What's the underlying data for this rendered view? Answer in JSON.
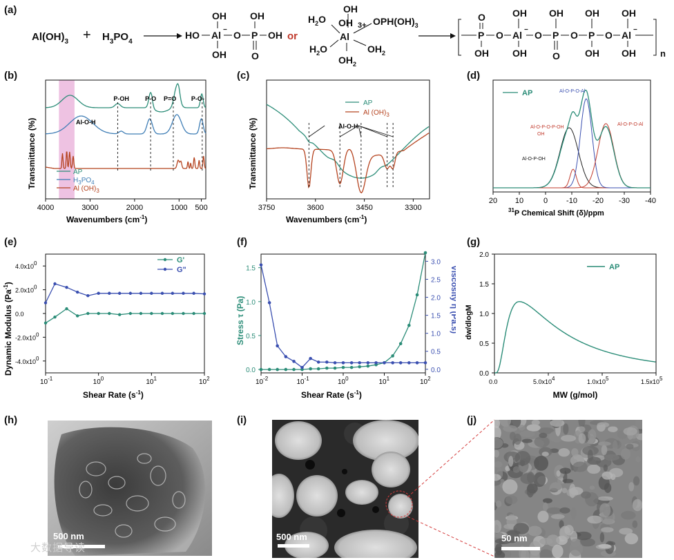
{
  "panel_labels": {
    "a": "(a)",
    "b": "(b)",
    "c": "(c)",
    "d": "(d)",
    "e": "(e)",
    "f": "(f)",
    "g": "(g)",
    "h": "(h)",
    "i": "(i)",
    "j": "(j)"
  },
  "reaction": {
    "reactant1_main": "Al(OH)",
    "reactant1_sub": "3",
    "plus": "+",
    "reactant2_main": "H",
    "reactant2_sub1": "3",
    "reactant2_main2": "PO",
    "reactant2_sub2": "4",
    "or": "or",
    "n": "n",
    "ho": "HO",
    "oh": "OH",
    "o": "O",
    "p": "P",
    "al": "Al",
    "h2o": "H",
    "sub2": "2",
    "oph": "OPH(OH)",
    "sub3": "3",
    "charge": "3+",
    "minus": "−"
  },
  "chart_data": [
    {
      "id": "b",
      "type": "line",
      "xlabel": "Wavenumbers (cm",
      "xlabel_sup": "-1",
      "xlabel_end": ")",
      "ylabel": "Transmittance (%)",
      "xlim": [
        4000,
        400
      ],
      "xticks": [
        "4000",
        "3000",
        "2000",
        "1000",
        "500"
      ],
      "annotations": [
        "P-OH",
        "P-O",
        "P=O",
        "P-O-",
        "Al-O-H"
      ],
      "series": [
        {
          "name": "AP",
          "color": "#2a8c77"
        },
        {
          "name": "H3PO4",
          "label_main": "H",
          "label_sub1": "3",
          "label_main2": "PO",
          "label_sub2": "4",
          "color": "#3e7db5"
        },
        {
          "name": "Al (OH)3",
          "label_main": "Al (OH)",
          "label_sub": "3",
          "color": "#b5431f"
        }
      ]
    },
    {
      "id": "c",
      "type": "line",
      "xlabel": "Wavenumbers (cm",
      "xlabel_sup": "-1",
      "xlabel_end": ")",
      "ylabel": "Transmittance (%)",
      "xlim": [
        3750,
        3250
      ],
      "xticks": [
        "3750",
        "3600",
        "3450",
        "3300"
      ],
      "annotations": [
        "Al-O-H"
      ],
      "series": [
        {
          "name": "AP",
          "color": "#2a8c77"
        },
        {
          "name": "Al (OH)3",
          "label_main": "Al (OH)",
          "label_sub": "3",
          "color": "#b5431f"
        }
      ]
    },
    {
      "id": "d",
      "type": "line",
      "xlabel_sup": "31",
      "xlabel": "P Chemical Shift (δ)/ppm",
      "xlim": [
        20,
        -40
      ],
      "xticks": [
        "20",
        "10",
        "0",
        "-10",
        "-20",
        "-30",
        "-40"
      ],
      "legend": "AP",
      "peaks": [
        {
          "center": -9,
          "height": 0.58,
          "color": "#222222"
        },
        {
          "center": -10.5,
          "height": 0.18,
          "color": "#c0392b"
        },
        {
          "center": -15.5,
          "height": 0.86,
          "color": "#3a4fb0"
        },
        {
          "center": -23,
          "height": 0.62,
          "color": "#c0392b"
        }
      ],
      "structure_labels": [
        "Al",
        "O",
        "P",
        "OH",
        "O",
        "P",
        "OH",
        "Al",
        "O",
        "P",
        "OH",
        "Al",
        "O",
        "P",
        "Al",
        "O",
        "P",
        "Al"
      ]
    },
    {
      "id": "e",
      "type": "line",
      "xlabel": "Shear Rate (s",
      "xlabel_sup": "-1",
      "xlabel_end": ")",
      "ylabel": "Dynamic Modulus (Pa",
      "ylabel_sup": "-1",
      "ylabel_end": ")",
      "xlim": [
        0.1,
        100
      ],
      "ylim": [
        -5,
        5
      ],
      "xticks": [
        "10",
        "10",
        "10",
        "10"
      ],
      "xtick_exps": [
        "-1",
        "0",
        "1",
        "2"
      ],
      "yticks": [
        "4.0x10",
        "2.0x10",
        "0.0",
        "-2.0x10",
        "-4.0x10"
      ],
      "ytick_exps": [
        "0",
        "0",
        "",
        "0",
        "0"
      ],
      "series": [
        {
          "name": "G'",
          "color": "#2a8c77",
          "x": [
            0.1,
            0.15,
            0.25,
            0.4,
            0.63,
            1,
            1.6,
            2.5,
            4,
            6.3,
            10,
            16,
            25,
            40,
            63,
            100
          ],
          "y": [
            -0.8,
            -0.3,
            0.4,
            -0.2,
            0.0,
            0.0,
            0.0,
            -0.1,
            0.0,
            0.0,
            0.0,
            0.0,
            0.0,
            0.0,
            0.0,
            0.0
          ]
        },
        {
          "name": "G\"",
          "color": "#3a4fb0",
          "x": [
            0.1,
            0.15,
            0.25,
            0.4,
            0.63,
            1,
            1.6,
            2.5,
            4,
            6.3,
            10,
            16,
            25,
            40,
            63,
            100
          ],
          "y": [
            0.9,
            2.5,
            2.2,
            1.8,
            1.5,
            1.7,
            1.7,
            1.7,
            1.7,
            1.7,
            1.7,
            1.7,
            1.7,
            1.7,
            1.7,
            1.65
          ]
        }
      ]
    },
    {
      "id": "f",
      "type": "line",
      "xlabel": "Shear Rate (s",
      "xlabel_sup": "-1",
      "xlabel_end": ")",
      "ylabel_left": "Stress τ (Pa)",
      "ylabel_right": "Viscosity η (Pa.s)",
      "xlim": [
        0.01,
        100
      ],
      "ylim_left": [
        -0.05,
        1.7
      ],
      "ylim_right": [
        -0.1,
        3.2
      ],
      "xticks": [
        "10",
        "10",
        "10",
        "10",
        "10"
      ],
      "xtick_exps": [
        "-2",
        "-1",
        "0",
        "1",
        "2"
      ],
      "yticks_left": [
        "0.0",
        "0.5",
        "1.0",
        "1.5"
      ],
      "yticks_right": [
        "0.0",
        "0.5",
        "1.0",
        "1.5",
        "2.0",
        "2.5",
        "3.0"
      ],
      "series": [
        {
          "name": "Stress",
          "color": "#2a8c77",
          "axis": "left",
          "x": [
            0.01,
            0.016,
            0.025,
            0.04,
            0.063,
            0.1,
            0.16,
            0.25,
            0.4,
            0.63,
            1,
            1.6,
            2.5,
            4,
            6.3,
            10,
            16,
            25,
            40,
            63,
            100
          ],
          "y": [
            0,
            0,
            0,
            0,
            0,
            0,
            0.01,
            0.01,
            0.02,
            0.02,
            0.03,
            0.03,
            0.04,
            0.05,
            0.07,
            0.1,
            0.2,
            0.38,
            0.65,
            1.1,
            1.72
          ]
        },
        {
          "name": "Viscosity",
          "color": "#3a4fb0",
          "axis": "right",
          "x": [
            0.01,
            0.016,
            0.025,
            0.04,
            0.063,
            0.1,
            0.16,
            0.25,
            0.4,
            0.63,
            1,
            1.6,
            2.5,
            4,
            6.3,
            10,
            16,
            25,
            40,
            63,
            100
          ],
          "y": [
            2.9,
            1.85,
            0.65,
            0.35,
            0.22,
            0.05,
            0.3,
            0.2,
            0.2,
            0.18,
            0.18,
            0.18,
            0.18,
            0.18,
            0.18,
            0.18,
            0.18,
            0.18,
            0.18,
            0.18,
            0.18
          ]
        }
      ]
    },
    {
      "id": "g",
      "type": "line",
      "xlabel": "MW (g/mol)",
      "ylabel": "dw/dlogM",
      "xlim": [
        0,
        150000
      ],
      "ylim": [
        0,
        2.0
      ],
      "xticks": [
        "0.0",
        "5.0x10",
        "1.0x10",
        "1.5x10"
      ],
      "xtick_exps": [
        "",
        "4",
        "5",
        "5"
      ],
      "yticks": [
        "0.0",
        "0.5",
        "1.0",
        "1.5",
        "2.0"
      ],
      "legend": "AP",
      "series": [
        {
          "name": "AP",
          "color": "#2a8c77",
          "peak_x": 23000,
          "peak_y": 1.2
        }
      ]
    }
  ],
  "tem": {
    "h_scale": "500 nm",
    "i_scale": "500 nm",
    "j_scale": "50 nm"
  },
  "watermark": "大数据导读",
  "colors": {
    "teal": "#2a8c77",
    "blue": "#3e7db5",
    "navy": "#3a4fb0",
    "red": "#b5431f",
    "pink": "#e9a7d6",
    "dashred": "#d43c3c"
  }
}
